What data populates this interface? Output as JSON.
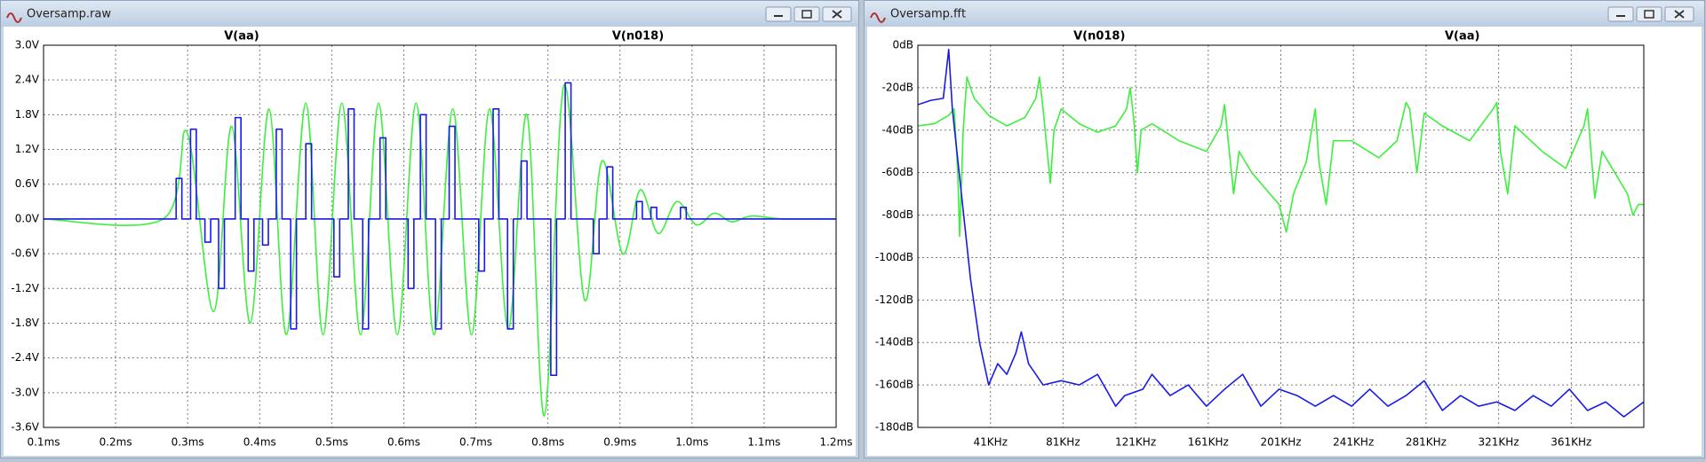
{
  "chart_data": [
    {
      "type": "line",
      "title": "Oversamp.raw",
      "xlim": [
        0.1,
        1.2
      ],
      "xticks": [
        {
          "value": 0.1,
          "label": "0.1ms"
        },
        {
          "value": 0.2,
          "label": "0.2ms"
        },
        {
          "value": 0.3,
          "label": "0.3ms"
        },
        {
          "value": 0.4,
          "label": "0.4ms"
        },
        {
          "value": 0.5,
          "label": "0.5ms"
        },
        {
          "value": 0.6,
          "label": "0.6ms"
        },
        {
          "value": 0.7,
          "label": "0.7ms"
        },
        {
          "value": 0.8,
          "label": "0.8ms"
        },
        {
          "value": 0.9,
          "label": "0.9ms"
        },
        {
          "value": 1.0,
          "label": "1.0ms"
        },
        {
          "value": 1.1,
          "label": "1.1ms"
        },
        {
          "value": 1.2,
          "label": "1.2ms"
        }
      ],
      "ylim": [
        -3.6,
        3.0
      ],
      "yticks": [
        {
          "value": 3.0,
          "label": "3.0V"
        },
        {
          "value": 2.4,
          "label": "2.4V"
        },
        {
          "value": 1.8,
          "label": "1.8V"
        },
        {
          "value": 1.2,
          "label": "1.2V"
        },
        {
          "value": 0.6,
          "label": "0.6V"
        },
        {
          "value": 0.0,
          "label": "0.0V"
        },
        {
          "value": -0.6,
          "label": "-0.6V"
        },
        {
          "value": -1.2,
          "label": "-1.2V"
        },
        {
          "value": -1.8,
          "label": "-1.8V"
        },
        {
          "value": -2.4,
          "label": "-2.4V"
        },
        {
          "value": -3.0,
          "label": "-3.0V"
        },
        {
          "value": -3.6,
          "label": "-3.6V"
        }
      ],
      "grid": true,
      "series": [
        {
          "name": "V(aa)",
          "color": "#3cf03c",
          "smooth": true,
          "x": [
            0.1,
            0.266,
            0.299,
            0.336,
            0.361,
            0.387,
            0.413,
            0.437,
            0.464,
            0.488,
            0.514,
            0.54,
            0.565,
            0.591,
            0.617,
            0.642,
            0.668,
            0.694,
            0.719,
            0.745,
            0.771,
            0.795,
            0.822,
            0.851,
            0.875,
            0.904,
            0.928,
            0.953,
            0.979,
            1.006,
            1.031,
            1.055,
            1.082,
            1.127,
            1.2
          ],
          "values": [
            0,
            0,
            1.5,
            -1.6,
            1.6,
            -1.8,
            1.9,
            -2.0,
            2.0,
            -2.0,
            2.0,
            -2.0,
            2.0,
            -2.0,
            2.0,
            -2.0,
            1.9,
            -2.0,
            1.9,
            -1.9,
            1.8,
            -3.4,
            2.3,
            -1.4,
            1.0,
            -0.6,
            0.5,
            -0.25,
            0.3,
            -0.1,
            0.1,
            -0.05,
            0.05,
            0,
            0
          ]
        },
        {
          "name": "V(n018)",
          "color": "#1a1ae8",
          "x": [
            0.1,
            0.284,
            0.284,
            0.292,
            0.292,
            0.304,
            0.304,
            0.312,
            0.312,
            0.324,
            0.324,
            0.332,
            0.332,
            0.343,
            0.343,
            0.351,
            0.351,
            0.366,
            0.366,
            0.374,
            0.374,
            0.384,
            0.384,
            0.392,
            0.392,
            0.404,
            0.404,
            0.412,
            0.412,
            0.423,
            0.423,
            0.431,
            0.431,
            0.443,
            0.443,
            0.451,
            0.451,
            0.464,
            0.464,
            0.472,
            0.472,
            0.503,
            0.503,
            0.511,
            0.511,
            0.523,
            0.523,
            0.531,
            0.531,
            0.543,
            0.543,
            0.551,
            0.551,
            0.567,
            0.567,
            0.575,
            0.575,
            0.606,
            0.606,
            0.614,
            0.614,
            0.623,
            0.623,
            0.631,
            0.631,
            0.644,
            0.644,
            0.652,
            0.652,
            0.663,
            0.663,
            0.671,
            0.671,
            0.704,
            0.704,
            0.712,
            0.712,
            0.724,
            0.724,
            0.732,
            0.732,
            0.744,
            0.744,
            0.752,
            0.752,
            0.763,
            0.763,
            0.771,
            0.771,
            0.804,
            0.804,
            0.812,
            0.812,
            0.824,
            0.824,
            0.832,
            0.832,
            0.863,
            0.863,
            0.871,
            0.871,
            0.882,
            0.882,
            0.89,
            0.89,
            0.923,
            0.923,
            0.931,
            0.931,
            0.943,
            0.943,
            0.951,
            0.951,
            0.984,
            0.984,
            0.992,
            0.992,
            1.2
          ],
          "values": [
            0,
            0,
            0.7,
            0.7,
            0,
            0,
            1.55,
            1.55,
            0,
            0,
            -0.4,
            -0.4,
            0,
            0,
            -1.2,
            -1.2,
            0,
            0,
            1.75,
            1.75,
            0,
            0,
            -0.9,
            -0.9,
            0,
            0,
            -0.45,
            -0.45,
            0,
            0,
            1.55,
            1.55,
            0,
            0,
            -1.9,
            -1.9,
            0,
            0,
            1.3,
            1.3,
            0,
            0,
            -1.0,
            -1.0,
            0,
            0,
            1.9,
            1.9,
            0,
            0,
            -1.9,
            -1.9,
            0,
            0,
            1.4,
            1.4,
            0,
            0,
            -1.2,
            -1.2,
            0,
            0,
            1.8,
            1.8,
            0,
            0,
            -1.9,
            -1.9,
            0,
            0,
            1.6,
            1.6,
            0,
            0,
            -0.9,
            -0.9,
            0,
            0,
            1.9,
            1.9,
            0,
            0,
            -1.9,
            -1.9,
            0,
            0,
            1.0,
            1.0,
            0,
            0,
            -2.7,
            -2.7,
            0,
            0,
            2.35,
            2.35,
            0,
            0,
            -0.6,
            -0.6,
            0,
            0,
            0.9,
            0.9,
            0,
            0,
            0.3,
            0.3,
            0,
            0,
            0.2,
            0.2,
            0,
            0,
            0.2,
            0.2,
            0,
            0
          ]
        }
      ]
    },
    {
      "type": "line",
      "title": "Oversamp.fft",
      "xlim": [
        1,
        401
      ],
      "xticks": [
        {
          "value": 41,
          "label": "41KHz"
        },
        {
          "value": 81,
          "label": "81KHz"
        },
        {
          "value": 121,
          "label": "121KHz"
        },
        {
          "value": 161,
          "label": "161KHz"
        },
        {
          "value": 201,
          "label": "201KHz"
        },
        {
          "value": 241,
          "label": "241KHz"
        },
        {
          "value": 281,
          "label": "281KHz"
        },
        {
          "value": 321,
          "label": "321KHz"
        },
        {
          "value": 361,
          "label": "361KHz"
        }
      ],
      "ylim": [
        -180,
        0
      ],
      "yticks": [
        {
          "value": 0,
          "label": "0dB"
        },
        {
          "value": -20,
          "label": "-20dB"
        },
        {
          "value": -40,
          "label": "-40dB"
        },
        {
          "value": -60,
          "label": "-60dB"
        },
        {
          "value": -80,
          "label": "-80dB"
        },
        {
          "value": -100,
          "label": "-100dB"
        },
        {
          "value": -120,
          "label": "-120dB"
        },
        {
          "value": -140,
          "label": "-140dB"
        },
        {
          "value": -160,
          "label": "-160dB"
        },
        {
          "value": -180,
          "label": "-180dB"
        }
      ],
      "grid": true,
      "series": [
        {
          "name": "V(n018)",
          "color": "#3cf03c",
          "x": [
            1,
            10,
            18,
            21,
            23,
            24,
            26,
            28,
            32,
            40,
            50,
            60,
            66,
            68,
            70,
            74,
            76,
            80,
            90,
            100,
            110,
            116,
            118,
            120,
            122,
            124,
            130,
            145,
            160,
            168,
            170,
            172,
            175,
            178,
            185,
            195,
            200,
            204,
            208,
            215,
            220,
            222,
            226,
            230,
            240,
            255,
            265,
            270,
            272,
            276,
            280,
            290,
            305,
            318,
            320,
            322,
            326,
            330,
            345,
            358,
            368,
            370,
            374,
            378,
            385,
            392,
            395,
            398,
            401
          ],
          "values": [
            -38,
            -37,
            -33,
            -30,
            -60,
            -90,
            -40,
            -15,
            -25,
            -33,
            -38,
            -34,
            -25,
            -15,
            -30,
            -65,
            -40,
            -30,
            -37,
            -41,
            -38,
            -30,
            -20,
            -35,
            -60,
            -40,
            -37,
            -45,
            -50,
            -38,
            -28,
            -45,
            -70,
            -50,
            -60,
            -70,
            -75,
            -88,
            -70,
            -55,
            -30,
            -55,
            -75,
            -45,
            -45,
            -53,
            -45,
            -27,
            -30,
            -60,
            -32,
            -38,
            -45,
            -30,
            -27,
            -50,
            -70,
            -38,
            -50,
            -58,
            -38,
            -30,
            -72,
            -50,
            -60,
            -70,
            -80,
            -75,
            -75
          ]
        },
        {
          "name": "V(aa)",
          "color": "#1a1ae8",
          "x": [
            1,
            8,
            15,
            18,
            20,
            25,
            30,
            35,
            40,
            45,
            50,
            55,
            58,
            62,
            70,
            80,
            90,
            100,
            110,
            115,
            125,
            130,
            140,
            150,
            160,
            170,
            180,
            190,
            200,
            210,
            220,
            230,
            240,
            250,
            260,
            270,
            280,
            290,
            300,
            310,
            320,
            330,
            340,
            350,
            360,
            370,
            380,
            390,
            401
          ],
          "values": [
            -28,
            -26,
            -25,
            -2,
            -30,
            -70,
            -110,
            -140,
            -160,
            -150,
            -155,
            -145,
            -135,
            -150,
            -160,
            -158,
            -160,
            -155,
            -170,
            -165,
            -162,
            -155,
            -165,
            -160,
            -170,
            -162,
            -155,
            -170,
            -162,
            -165,
            -170,
            -165,
            -170,
            -162,
            -170,
            -165,
            -158,
            -172,
            -165,
            -170,
            -168,
            -172,
            -165,
            -170,
            -162,
            -172,
            -168,
            -175,
            -168
          ]
        }
      ]
    }
  ]
}
